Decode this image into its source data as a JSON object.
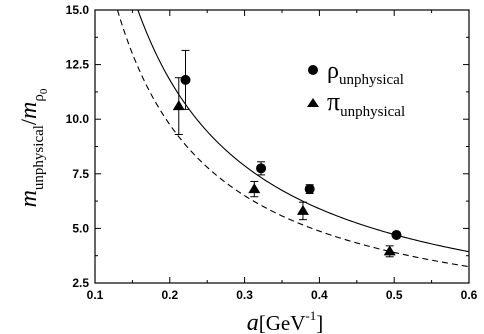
{
  "chart_data": {
    "type": "scatter",
    "title": "",
    "xlabel": {
      "main": "a",
      "bracket_open": "[GeV",
      "sup": "-1",
      "bracket_close": "]"
    },
    "ylabel": {
      "main": "m",
      "main_sub": "unphysical",
      "slash": "/",
      "denom": "m",
      "denom_sub": "ρ",
      "denom_subsub": "0"
    },
    "xlim": [
      0.1,
      0.6
    ],
    "ylim": [
      2.5,
      15.0
    ],
    "x_ticks": [
      0.1,
      0.2,
      0.3,
      0.4,
      0.5,
      0.6
    ],
    "x_tick_labels": [
      "0.1",
      "0.2",
      "0.3",
      "0.4",
      "0.5",
      "0.6"
    ],
    "y_ticks": [
      2.5,
      5.0,
      7.5,
      10.0,
      12.5,
      15.0
    ],
    "y_tick_labels": [
      "2.5",
      "5.0",
      "7.5",
      "10.0",
      "12.5",
      "15.0"
    ],
    "grid": false,
    "legend_position": "top-right",
    "series": [
      {
        "name": "ρ",
        "name_sub": "unphysical",
        "marker": "circle",
        "color": "#000000",
        "points": [
          {
            "x": 0.221,
            "y": 11.8,
            "err": 1.35
          },
          {
            "x": 0.322,
            "y": 7.75,
            "err": 0.3
          },
          {
            "x": 0.387,
            "y": 6.8,
            "err": 0.2
          },
          {
            "x": 0.503,
            "y": 4.7,
            "err": 0.12
          }
        ],
        "fit": {
          "style": "solid",
          "A": 2.36
        }
      },
      {
        "name": "π",
        "name_sub": "unphysical",
        "marker": "triangle",
        "color": "#000000",
        "points": [
          {
            "x": 0.212,
            "y": 10.6,
            "err": 1.3
          },
          {
            "x": 0.313,
            "y": 6.8,
            "err": 0.35
          },
          {
            "x": 0.378,
            "y": 5.8,
            "err": 0.4
          },
          {
            "x": 0.494,
            "y": 3.95,
            "err": 0.25
          }
        ],
        "fit": {
          "style": "dashed",
          "A": 1.95
        }
      }
    ]
  }
}
